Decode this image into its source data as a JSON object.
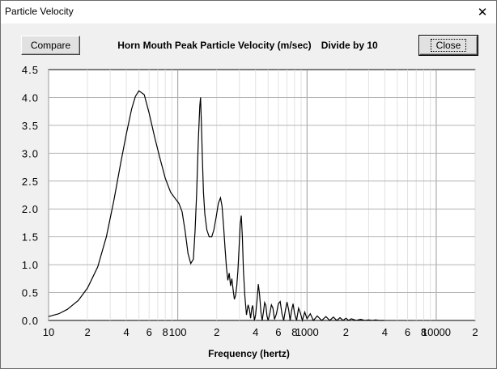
{
  "window": {
    "title": "Particle Velocity",
    "close_glyph": "✕"
  },
  "buttons": {
    "compare": "Compare",
    "close": "Close"
  },
  "chart_data": {
    "type": "line",
    "title": "Horn Mouth Peak Particle Velocity (m/sec)",
    "subtitle": "Divide by 10",
    "xlabel": "Frequency (hertz)",
    "ylabel": "",
    "x_scale": "log",
    "xlim": [
      10,
      20000
    ],
    "ylim": [
      0,
      4.5
    ],
    "grid": true,
    "y_ticks": [
      "0.0",
      "0.5",
      "1.0",
      "1.5",
      "2.0",
      "2.5",
      "3.0",
      "3.5",
      "4.0",
      "4.5"
    ],
    "x_ticks": [
      {
        "value": 10,
        "label": "10"
      },
      {
        "value": 20,
        "label": "2"
      },
      {
        "value": 40,
        "label": "4"
      },
      {
        "value": 60,
        "label": "6"
      },
      {
        "value": 80,
        "label": "8"
      },
      {
        "value": 100,
        "label": "100"
      },
      {
        "value": 200,
        "label": "2"
      },
      {
        "value": 400,
        "label": "4"
      },
      {
        "value": 600,
        "label": "6"
      },
      {
        "value": 800,
        "label": "8"
      },
      {
        "value": 1000,
        "label": "1000"
      },
      {
        "value": 2000,
        "label": "2"
      },
      {
        "value": 4000,
        "label": "4"
      },
      {
        "value": 6000,
        "label": "6"
      },
      {
        "value": 8000,
        "label": "8"
      },
      {
        "value": 10000,
        "label": "10000"
      },
      {
        "value": 20000,
        "label": "2"
      }
    ],
    "series": [
      {
        "x": [
          10,
          12,
          14,
          17,
          20,
          24,
          28,
          32,
          36,
          40,
          44,
          47,
          50,
          55,
          60,
          66,
          72,
          80,
          88,
          96,
          102,
          108,
          114,
          120,
          126,
          132,
          136,
          140,
          144,
          148,
          150,
          152,
          155,
          158,
          162,
          168,
          175,
          183,
          190,
          198,
          206,
          214,
          220,
          226,
          232,
          238,
          244,
          250,
          256,
          262,
          268,
          274,
          280,
          286,
          292,
          298,
          304,
          310,
          316,
          322,
          330,
          340,
          350,
          358,
          366,
          374,
          380,
          386,
          392,
          400,
          410,
          420,
          430,
          440,
          450,
          460,
          470,
          480,
          490,
          500,
          515,
          530,
          545,
          560,
          580,
          600,
          620,
          640,
          660,
          680,
          700,
          720,
          740,
          760,
          780,
          800,
          830,
          860,
          890,
          920,
          960,
          1000,
          1060,
          1120,
          1200,
          1300,
          1400,
          1500,
          1600,
          1700,
          1800,
          1900,
          2000,
          2100,
          2200,
          2400,
          2600,
          2800,
          3000,
          3200,
          3400,
          3600,
          3800,
          4000
        ],
        "y": [
          0.07,
          0.12,
          0.2,
          0.36,
          0.58,
          0.96,
          1.5,
          2.15,
          2.8,
          3.35,
          3.8,
          4.02,
          4.12,
          4.05,
          3.72,
          3.3,
          2.95,
          2.55,
          2.3,
          2.18,
          2.1,
          1.95,
          1.6,
          1.2,
          1.02,
          1.1,
          1.6,
          2.3,
          3.2,
          3.85,
          4.0,
          3.6,
          2.9,
          2.3,
          1.9,
          1.62,
          1.5,
          1.5,
          1.62,
          1.85,
          2.1,
          2.2,
          2.05,
          1.7,
          1.3,
          0.95,
          0.72,
          0.85,
          0.62,
          0.75,
          0.55,
          0.38,
          0.45,
          0.62,
          0.9,
          1.3,
          1.72,
          1.88,
          1.5,
          0.9,
          0.45,
          0.1,
          0.28,
          0.2,
          0.04,
          0.22,
          0.27,
          0.12,
          0.0,
          0.1,
          0.35,
          0.65,
          0.45,
          0.15,
          0.0,
          0.15,
          0.32,
          0.27,
          0.08,
          0.0,
          0.12,
          0.28,
          0.22,
          0.02,
          0.12,
          0.3,
          0.34,
          0.12,
          0.0,
          0.18,
          0.33,
          0.2,
          0.0,
          0.18,
          0.3,
          0.13,
          0.0,
          0.22,
          0.13,
          0.0,
          0.15,
          0.03,
          0.12,
          0.0,
          0.08,
          0.0,
          0.07,
          0.0,
          0.06,
          0.0,
          0.05,
          0.0,
          0.04,
          0.0,
          0.03,
          0.0,
          0.02,
          0.0,
          0.01,
          0.0,
          0.01,
          0.0,
          0.0,
          0.0
        ]
      }
    ]
  }
}
